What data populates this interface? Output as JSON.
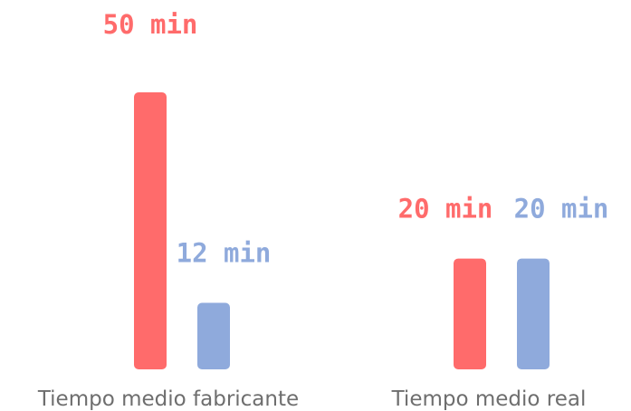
{
  "chart_data": {
    "type": "bar",
    "categories": [
      "Tiempo medio fabricante",
      "Tiempo medio real"
    ],
    "series": [
      {
        "values": [
          50,
          20
        ],
        "color": "#ff6b6b",
        "labels": [
          "50 min",
          "20 min"
        ]
      },
      {
        "values": [
          12,
          20
        ],
        "color": "#8faadc",
        "labels": [
          "12 min",
          "20 min"
        ]
      }
    ],
    "unit": "min",
    "ylim": [
      0,
      50
    ],
    "grid": false,
    "axes_visible": false
  }
}
